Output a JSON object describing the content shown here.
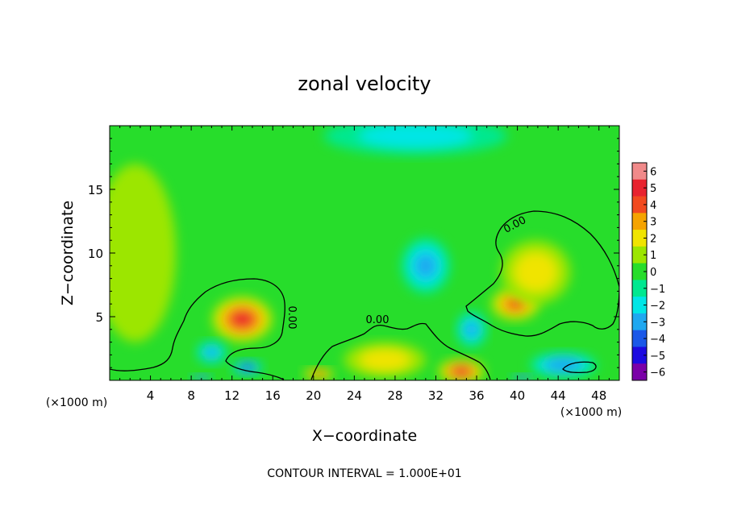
{
  "chart_data": {
    "type": "heatmap",
    "title": "zonal velocity",
    "xlabel": "X−coordinate",
    "ylabel": "Z−coordinate",
    "x_unit_left": "(×1000 m)",
    "x_unit_right": "(×1000 m)",
    "xlim": [
      0,
      50
    ],
    "ylim": [
      0,
      20
    ],
    "x_ticks": [
      4,
      8,
      12,
      16,
      20,
      24,
      28,
      32,
      36,
      40,
      44,
      48
    ],
    "y_ticks": [
      5,
      10,
      15
    ],
    "contour_interval_text": "CONTOUR INTERVAL = 1.000E+01",
    "contour_labels": [
      "0.00",
      "0.00",
      "0.00"
    ],
    "colorbar": {
      "levels": [
        6,
        5,
        4,
        3,
        2,
        1,
        0,
        -1,
        -2,
        -3,
        -4,
        -5,
        -6
      ],
      "tick_labels": [
        "6",
        "5",
        "4",
        "3",
        "2",
        "1",
        "0",
        "−1",
        "−2",
        "−3",
        "−4",
        "−5",
        "−6"
      ],
      "colors": [
        "#f08a8a",
        "#e8232f",
        "#f24a1f",
        "#f5a300",
        "#f0e400",
        "#9ce600",
        "#27dd2b",
        "#00e890",
        "#00e6e6",
        "#1fa8f0",
        "#1a58e8",
        "#1c0ae0",
        "#7a00a8"
      ]
    },
    "features": [
      {
        "x": 13,
        "z": 4.8,
        "value": 4.5,
        "rx": 3.0,
        "rz": 1.8
      },
      {
        "x": 10,
        "z": 2.2,
        "value": -3,
        "rx": 1.5,
        "rz": 0.9
      },
      {
        "x": 13.5,
        "z": 1.0,
        "value": -5,
        "rx": 1.5,
        "rz": 0.6
      },
      {
        "x": 9,
        "z": 0.2,
        "value": -6,
        "rx": 1.0,
        "rz": 0.3
      },
      {
        "x": 31,
        "z": 9.0,
        "value": -3,
        "rx": 2.4,
        "rz": 2.2
      },
      {
        "x": 34.5,
        "z": 0.7,
        "value": 4.5,
        "rx": 2.3,
        "rz": 1.0
      },
      {
        "x": 20.5,
        "z": 0.5,
        "value": 3.5,
        "rx": 1.5,
        "rz": 0.5
      },
      {
        "x": 27,
        "z": 1.6,
        "value": 2,
        "rx": 4.0,
        "rz": 1.4
      },
      {
        "x": 35.5,
        "z": 4.0,
        "value": -3,
        "rx": 1.5,
        "rz": 1.4
      },
      {
        "x": 39.8,
        "z": 6.0,
        "value": 3.5,
        "rx": 2.4,
        "rz": 1.3
      },
      {
        "x": 41.8,
        "z": 8.5,
        "value": 2,
        "rx": 3.4,
        "rz": 2.5
      },
      {
        "x": 44.5,
        "z": 1.2,
        "value": -3.5,
        "rx": 3.3,
        "rz": 1.0
      },
      {
        "x": 40.5,
        "z": 0.2,
        "value": -6,
        "rx": 1.1,
        "rz": 0.3
      },
      {
        "x": 30,
        "z": 19.2,
        "value": -2,
        "rx": 9.0,
        "rz": 1.5
      },
      {
        "x": 2.5,
        "z": 10,
        "value": 1,
        "rx": 4.0,
        "rz": 7.0
      }
    ]
  }
}
